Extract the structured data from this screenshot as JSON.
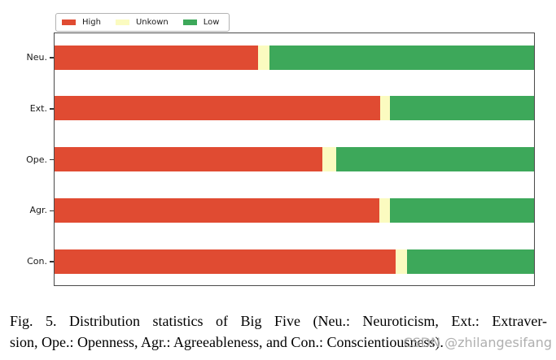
{
  "figure": {
    "caption_line1": "Fig. 5.  Distribution statistics of Big Five (Neu.: Neuroticism, Ext.: Extraver-",
    "caption_line2": "sion, Ope.: Openness, Agr.: Agreeableness, and Con.: Conscientiousness).",
    "watermark": "CSDN @zhilangesifang"
  },
  "chart_data": {
    "type": "bar",
    "orientation": "horizontal",
    "stacked": true,
    "title": "",
    "xlabel": "",
    "ylabel": "",
    "categories": [
      "Neu.",
      "Ext.",
      "Ope.",
      "Agr.",
      "Con."
    ],
    "series": [
      {
        "name": "High",
        "color": "#E04B32",
        "values": [
          42.4,
          67.9,
          55.8,
          67.7,
          71.2
        ]
      },
      {
        "name": "Unkown",
        "color": "#FBFBC0",
        "values": [
          2.4,
          2.1,
          2.9,
          2.3,
          2.4
        ]
      },
      {
        "name": "Low",
        "color": "#3DA85A",
        "values": [
          55.2,
          30.0,
          41.3,
          30.0,
          26.4
        ]
      }
    ],
    "values_unit": "percent of total (stacked to 100%)",
    "xlim": [
      0,
      100
    ],
    "x_axis_tick_labels_visible": false,
    "grid": false,
    "legend_position": "top-left-above-plot",
    "frame_color": "#4a4a4a"
  }
}
